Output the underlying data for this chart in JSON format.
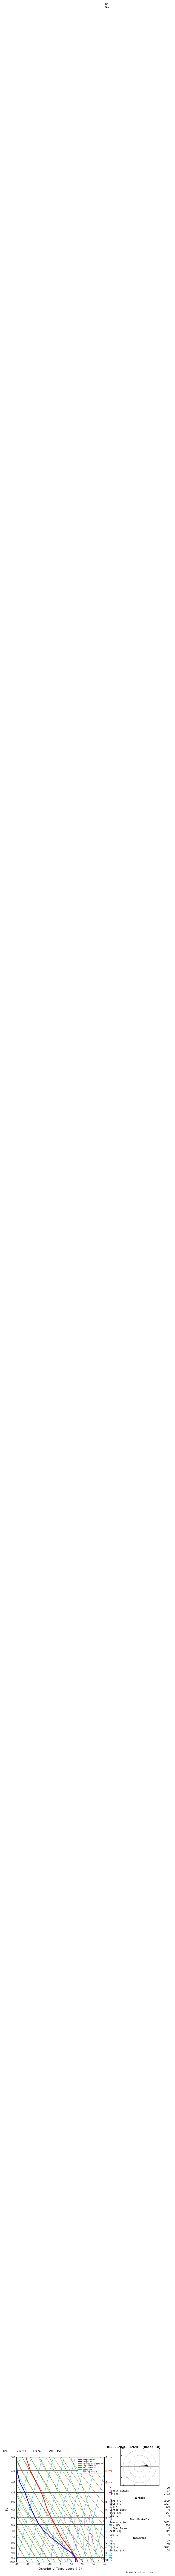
{
  "title_left": "-37°00'S  174°4B'E  79m  ASL",
  "title_right": "01.05.2024  12GMT  (Base: 18)",
  "xlabel": "Dewpoint / Temperature (°C)",
  "ylabel_left": "hPa",
  "bg_color": "#ffffff",
  "plot_bg": "#ffffff",
  "pressure_ticks": [
    300,
    350,
    400,
    450,
    500,
    550,
    600,
    650,
    700,
    750,
    800,
    850,
    900,
    950,
    1000
  ],
  "temp_min": -40,
  "temp_max": 40,
  "skew_factor": 45.0,
  "isotherm_color": "#00aaff",
  "dry_adiabat_color": "#cc6600",
  "wet_adiabat_color": "#00aa00",
  "mixing_ratio_color": "#cc00cc",
  "temp_color": "#ff0000",
  "dewp_color": "#0000ff",
  "parcel_color": "#888888",
  "legend_items": [
    {
      "label": "Temperature",
      "color": "#ff0000",
      "style": "solid"
    },
    {
      "label": "Dewpoint",
      "color": "#0000ff",
      "style": "solid"
    },
    {
      "label": "Parcel Trajectory",
      "color": "#888888",
      "style": "solid"
    },
    {
      "label": "Dry Adiabat",
      "color": "#cc6600",
      "style": "solid"
    },
    {
      "label": "Wet Adiabat",
      "color": "#00aa00",
      "style": "solid"
    },
    {
      "label": "Isotherm",
      "color": "#00aaff",
      "style": "solid"
    },
    {
      "label": "Mixing Ratio",
      "color": "#cc00cc",
      "style": "dotted"
    }
  ],
  "stats_K": "29",
  "stats_TT": "47",
  "stats_PW": "2.73",
  "stats_sfc_temp": "15.9",
  "stats_sfc_dewp": "13.7",
  "stats_sfc_theta": "316",
  "stats_sfc_li": "0",
  "stats_sfc_cape": "177",
  "stats_sfc_cin": "0",
  "stats_mu_pres": "1002",
  "stats_mu_theta": "316",
  "stats_mu_li": "0",
  "stats_mu_cape": "177",
  "stats_mu_cin": "0",
  "stats_hodo_eh": "-7",
  "stats_hodo_sreh": "59",
  "stats_stmdir": "302°",
  "stats_stmspd": "28",
  "km_labels": [
    "8",
    "7",
    "6",
    "5",
    "4",
    "3",
    "2",
    "1",
    "LCL"
  ],
  "km_pressures": [
    300,
    400,
    500,
    550,
    600,
    700,
    800,
    900,
    975
  ],
  "mixing_ratio_values": [
    1,
    2,
    4,
    6,
    8,
    10,
    15,
    20,
    25
  ],
  "sounding_pressure": [
    1000,
    975,
    950,
    925,
    900,
    875,
    850,
    825,
    800,
    775,
    750,
    725,
    700,
    650,
    600,
    550,
    500,
    450,
    400,
    350,
    300
  ],
  "sounding_temp": [
    15.9,
    14.5,
    13.0,
    11.0,
    9.0,
    7.0,
    5.0,
    2.5,
    0.0,
    -2.5,
    -5.0,
    -7.0,
    -9.0,
    -13.5,
    -18.5,
    -23.5,
    -28.0,
    -33.0,
    -40.0,
    -48.0,
    -55.0
  ],
  "sounding_dewp": [
    13.7,
    13.5,
    12.0,
    10.5,
    8.0,
    4.0,
    0.0,
    -3.0,
    -7.0,
    -11.0,
    -15.0,
    -18.0,
    -22.0,
    -28.0,
    -33.0,
    -38.0,
    -43.0,
    -48.0,
    -55.0,
    -60.0,
    -65.0
  ],
  "parcel_temp": [
    15.9,
    14.0,
    12.0,
    9.8,
    7.4,
    4.8,
    2.0,
    -1.0,
    -4.2,
    -7.6,
    -11.2,
    -15.0,
    -19.0,
    -27.5,
    -36.5,
    -45.5,
    -55.0,
    -64.5,
    -74.5,
    -85.0,
    -95.0
  ],
  "wind_barb_data": [
    {
      "pressure": 1000,
      "u": 3,
      "v": 5,
      "color": "#00aaff"
    },
    {
      "pressure": 975,
      "u": 4,
      "v": 6,
      "color": "#00aaff"
    },
    {
      "pressure": 950,
      "u": 5,
      "v": 7,
      "color": "#00aaff"
    },
    {
      "pressure": 925,
      "u": 6,
      "v": 8,
      "color": "#00aaff"
    },
    {
      "pressure": 900,
      "u": 5,
      "v": 7,
      "color": "#00aaff"
    },
    {
      "pressure": 850,
      "u": 4,
      "v": 6,
      "color": "#00aaff"
    },
    {
      "pressure": 800,
      "u": 3,
      "v": 5,
      "color": "#00aaff"
    },
    {
      "pressure": 750,
      "u": 2,
      "v": 4,
      "color": "#00aaff"
    },
    {
      "pressure": 700,
      "u": 2,
      "v": 4,
      "color": "#00aaff"
    },
    {
      "pressure": 650,
      "u": 3,
      "v": 5,
      "color": "#00aaff"
    },
    {
      "pressure": 600,
      "u": 4,
      "v": 6,
      "color": "#00aaff"
    },
    {
      "pressure": 550,
      "u": 5,
      "v": 8,
      "color": "#00aaff"
    },
    {
      "pressure": 500,
      "u": 6,
      "v": 9,
      "color": "#cc00cc"
    },
    {
      "pressure": 450,
      "u": 7,
      "v": 10,
      "color": "#cc00cc"
    },
    {
      "pressure": 400,
      "u": 8,
      "v": 11,
      "color": "#cc00cc"
    },
    {
      "pressure": 350,
      "u": 9,
      "v": 12,
      "color": "#ff4400"
    },
    {
      "pressure": 300,
      "u": 10,
      "v": 13,
      "color": "#ff4400"
    }
  ]
}
